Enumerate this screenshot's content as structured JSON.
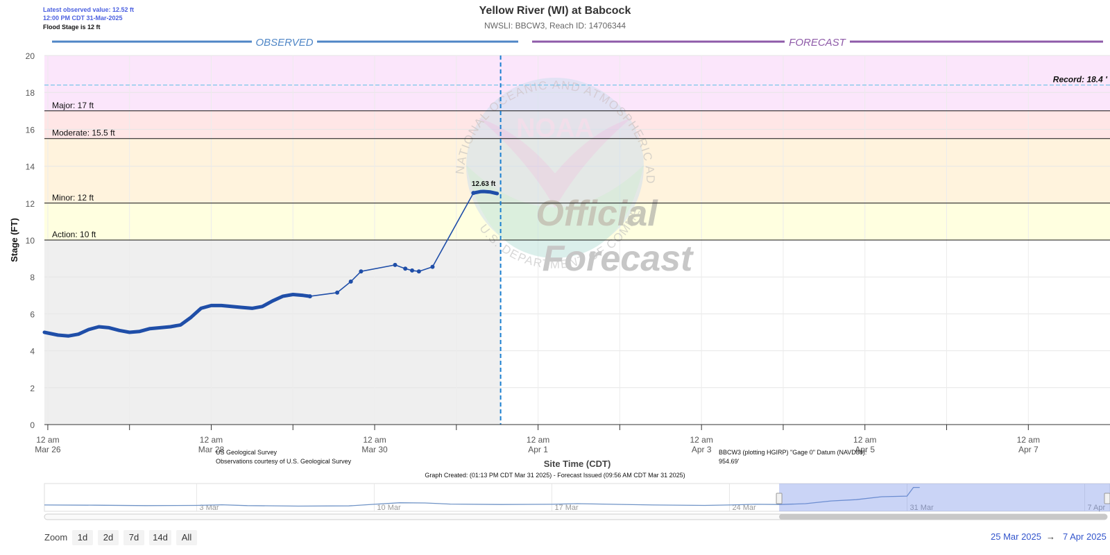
{
  "header": {
    "latest_value": "Latest observed value: 12.52 ft",
    "latest_time": "12:00 PM CDT 31-Mar-2025",
    "flood_stage_note": "Flood Stage is 12 ft",
    "title": "Yellow River (WI) at Babcock",
    "subtitle": "NWSLI: BBCW3, Reach ID: 14706344"
  },
  "sections": {
    "observed": "OBSERVED",
    "forecast": "FORECAST"
  },
  "watermark": {
    "official": "Official",
    "forecast": "Forecast",
    "noaa": "NOAA",
    "ring_top": "NATIONAL OCEANIC AND ATMOSPHERIC ADMINISTRATION",
    "ring_bottom": "U.S. DEPARTMENT OF COMMERCE"
  },
  "footer": {
    "source_name": "US Geological Survey",
    "source_note": "Observations courtesy of U.S. Geological Survey",
    "datum_line1": "BBCW3 (plotting HGIRP) \"Gage 0\" Datum (NAVD88):",
    "datum_line2": "954.69'",
    "created": "Graph Created: (01:13 PM CDT Mar 31 2025) - Forecast Issued (09:56 AM CDT Mar 31 2025)"
  },
  "navigator": {
    "labels": [
      {
        "text": "3 Mar",
        "date": "2025-03-03"
      },
      {
        "text": "10 Mar",
        "date": "2025-03-10"
      },
      {
        "text": "17 Mar",
        "date": "2025-03-17"
      },
      {
        "text": "24 Mar",
        "date": "2025-03-24"
      },
      {
        "text": "31 Mar",
        "date": "2025-03-31"
      },
      {
        "text": "7 Apr",
        "date": "2025-04-07"
      }
    ],
    "selection_start": "2025-03-25T23:00",
    "selection_end": "2025-04-07T23:59",
    "start": "2025-02-25T00:00",
    "end": "2025-04-07T23:59",
    "series": [
      [
        "2025-02-25",
        4.6
      ],
      [
        "2025-02-27",
        4.5
      ],
      [
        "2025-03-01",
        4.3
      ],
      [
        "2025-03-03",
        4.4
      ],
      [
        "2025-03-04",
        4.7
      ],
      [
        "2025-03-05",
        4.3
      ],
      [
        "2025-03-07",
        4.1
      ],
      [
        "2025-03-09",
        4.2
      ],
      [
        "2025-03-10",
        4.9
      ],
      [
        "2025-03-11",
        5.6
      ],
      [
        "2025-03-12",
        5.5
      ],
      [
        "2025-03-13",
        5.0
      ],
      [
        "2025-03-15",
        4.8
      ],
      [
        "2025-03-17",
        4.9
      ],
      [
        "2025-03-18",
        5.2
      ],
      [
        "2025-03-19",
        5.0
      ],
      [
        "2025-03-21",
        4.6
      ],
      [
        "2025-03-23",
        4.4
      ],
      [
        "2025-03-24",
        4.6
      ],
      [
        "2025-03-25",
        4.9
      ],
      [
        "2025-03-26",
        4.8
      ],
      [
        "2025-03-27",
        5.2
      ],
      [
        "2025-03-28",
        6.4
      ],
      [
        "2025-03-29",
        7.0
      ],
      [
        "2025-03-30",
        8.3
      ],
      [
        "2025-03-31",
        8.6
      ],
      [
        "2025-03-31T06:00",
        12.5
      ],
      [
        "2025-03-31T12:00",
        12.5
      ]
    ]
  },
  "controls": {
    "zoom_label": "Zoom",
    "zoom_buttons": [
      "1d",
      "2d",
      "7d",
      "14d",
      "All"
    ],
    "range_from": "25 Mar 2025",
    "range_arrow": "→",
    "range_to": "7 Apr 2025"
  },
  "chart_data": {
    "type": "line",
    "title": "Yellow River (WI) at Babcock",
    "subtitle": "NWSLI: BBCW3, Reach ID: 14706344",
    "xlabel": "Site Time (CDT)",
    "ylabel": "Stage (FT)",
    "ylim": [
      0,
      20
    ],
    "yticks": [
      0,
      2,
      4,
      6,
      8,
      10,
      12,
      14,
      16,
      18,
      20
    ],
    "xlim": [
      "2025-03-25T23:00",
      "2025-04-07T23:59"
    ],
    "xticks": [
      {
        "date": "2025-03-26T00:00",
        "line1": "12 am",
        "line2": "Mar 26"
      },
      {
        "date": "2025-03-28T00:00",
        "line1": "12 am",
        "line2": "Mar 28"
      },
      {
        "date": "2025-03-30T00:00",
        "line1": "12 am",
        "line2": "Mar 30"
      },
      {
        "date": "2025-04-01T00:00",
        "line1": "12 am",
        "line2": "Apr 1"
      },
      {
        "date": "2025-04-03T00:00",
        "line1": "12 am",
        "line2": "Apr 3"
      },
      {
        "date": "2025-04-05T00:00",
        "line1": "12 am",
        "line2": "Apr 5"
      },
      {
        "date": "2025-04-07T00:00",
        "line1": "12 am",
        "line2": "Apr 7"
      }
    ],
    "minor_ticks": [
      "2025-03-27T00:00",
      "2025-03-29T00:00",
      "2025-03-31T00:00",
      "2025-04-02T00:00",
      "2025-04-04T00:00",
      "2025-04-06T00:00"
    ],
    "grid": true,
    "forecast_start": "2025-03-31T13:00",
    "flood_categories": [
      {
        "name": "Action",
        "label": "Action: 10 ft",
        "value": 10,
        "color": "#ffffe0"
      },
      {
        "name": "Minor",
        "label": "Minor: 12 ft",
        "value": 12,
        "color": "#fff3dd"
      },
      {
        "name": "Moderate",
        "label": "Moderate: 15.5 ft",
        "value": 15.5,
        "color": "#ffe6e6"
      },
      {
        "name": "Major",
        "label": "Major: 17 ft",
        "value": 17,
        "color": "#fbe6fb"
      }
    ],
    "record": {
      "label": "Record: 18.4 '",
      "value": 18.4
    },
    "peak_label": {
      "text": "12.63 ft",
      "date": "2025-03-31T08:00",
      "value": 12.63
    },
    "series": [
      {
        "style": "dense",
        "points": [
          [
            "2025-03-25T23:00",
            5.0
          ],
          [
            "2025-03-26T03:00",
            4.85
          ],
          [
            "2025-03-26T06:00",
            4.8
          ],
          [
            "2025-03-26T09:00",
            4.9
          ],
          [
            "2025-03-26T12:00",
            5.15
          ],
          [
            "2025-03-26T15:00",
            5.3
          ],
          [
            "2025-03-26T18:00",
            5.25
          ],
          [
            "2025-03-26T21:00",
            5.1
          ],
          [
            "2025-03-27T00:00",
            5.0
          ],
          [
            "2025-03-27T03:00",
            5.05
          ],
          [
            "2025-03-27T06:00",
            5.2
          ],
          [
            "2025-03-27T09:00",
            5.25
          ],
          [
            "2025-03-27T12:00",
            5.3
          ],
          [
            "2025-03-27T15:00",
            5.4
          ],
          [
            "2025-03-27T18:00",
            5.8
          ],
          [
            "2025-03-27T21:00",
            6.3
          ],
          [
            "2025-03-28T00:00",
            6.45
          ],
          [
            "2025-03-28T03:00",
            6.45
          ],
          [
            "2025-03-28T06:00",
            6.4
          ],
          [
            "2025-03-28T09:00",
            6.35
          ],
          [
            "2025-03-28T12:00",
            6.3
          ],
          [
            "2025-03-28T15:00",
            6.4
          ],
          [
            "2025-03-28T18:00",
            6.7
          ],
          [
            "2025-03-28T21:00",
            6.95
          ],
          [
            "2025-03-29T00:00",
            7.05
          ],
          [
            "2025-03-29T03:00",
            7.0
          ],
          [
            "2025-03-29T05:00",
            6.95
          ]
        ]
      },
      {
        "style": "sparse",
        "points": [
          [
            "2025-03-29T05:00",
            6.95
          ],
          [
            "2025-03-29T13:00",
            7.15
          ],
          [
            "2025-03-29T17:00",
            7.75
          ],
          [
            "2025-03-29T20:00",
            8.3
          ],
          [
            "2025-03-30T06:00",
            8.65
          ],
          [
            "2025-03-30T09:00",
            8.45
          ],
          [
            "2025-03-30T11:00",
            8.35
          ],
          [
            "2025-03-30T13:00",
            8.3
          ],
          [
            "2025-03-30T17:00",
            8.55
          ],
          [
            "2025-03-31T05:00",
            12.55
          ]
        ]
      },
      {
        "style": "dense",
        "points": [
          [
            "2025-03-31T05:00",
            12.55
          ],
          [
            "2025-03-31T07:00",
            12.62
          ],
          [
            "2025-03-31T08:00",
            12.63
          ],
          [
            "2025-03-31T10:00",
            12.6
          ],
          [
            "2025-03-31T12:00",
            12.52
          ]
        ]
      }
    ]
  }
}
